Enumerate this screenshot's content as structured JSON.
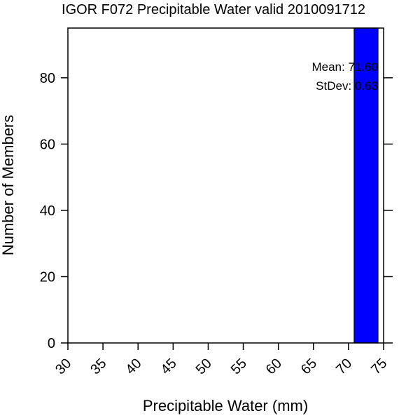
{
  "chart_data": {
    "type": "bar",
    "title": "IGOR F072 Precipitable Water valid 2010091712",
    "xlabel": "Precipitable Water (mm)",
    "ylabel": "Number of Members",
    "xlim": [
      30,
      75
    ],
    "ylim": [
      0,
      95
    ],
    "xticks": [
      30,
      35,
      40,
      45,
      50,
      55,
      60,
      65,
      70,
      75
    ],
    "yticks": [
      0,
      20,
      40,
      60,
      80
    ],
    "bars": [
      {
        "x0": 70.8,
        "x1": 74.2,
        "value": 95
      }
    ],
    "bar_color": "#0000ff",
    "annotations": {
      "mean": "Mean: 71.60",
      "stdev": "StDev: 0.63"
    },
    "grid": false
  }
}
